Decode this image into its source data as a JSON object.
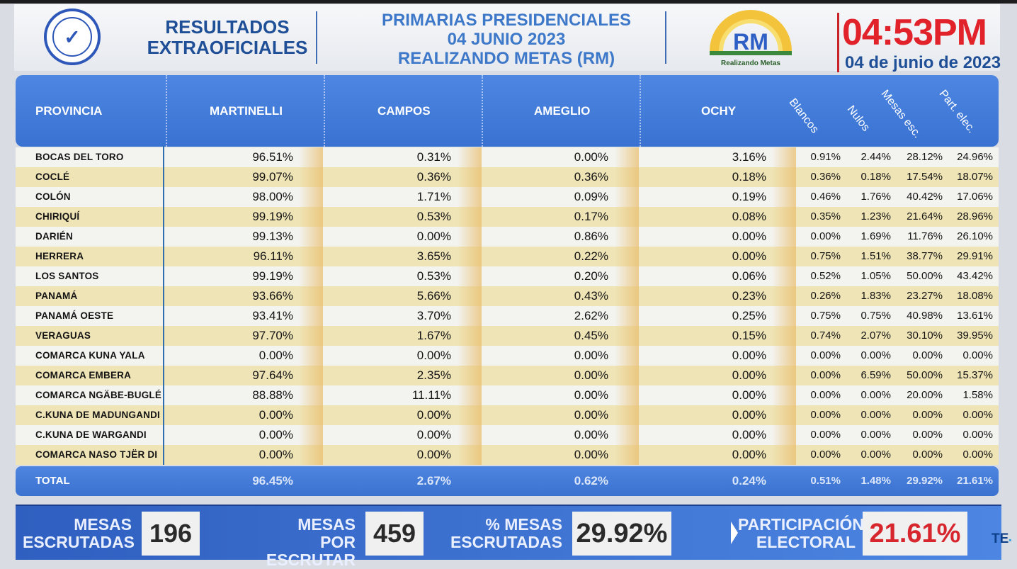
{
  "header": {
    "title_line1": "RESULTADOS",
    "title_line2": "EXTRAOFICIALES",
    "center_line1": "PRIMARIAS PRESIDENCIALES",
    "center_line2": "04 JUNIO 2023",
    "center_line3": "REALIZANDO METAS (RM)",
    "logo_text": "RM",
    "logo_caption": "Realizando Metas",
    "time": "04:53PM",
    "date": "04 de junio de 2023",
    "accent_blue": "#1f4f96",
    "accent_red": "#e2222a"
  },
  "table": {
    "columns": {
      "province": "PROVINCIA",
      "martinelli": "MARTINELLI",
      "campos": "CAMPOS",
      "ameglio": "AMEGLIO",
      "ochy": "OCHY",
      "blancos": "Blancos",
      "nulos": "Nulos",
      "mesas": "Mesas esc.",
      "part": "Part. elec."
    },
    "rows": [
      {
        "province": "BOCAS DEL TORO",
        "martinelli": "96.51%",
        "campos": "0.31%",
        "ameglio": "0.00%",
        "ochy": "3.16%",
        "blancos": "0.91%",
        "nulos": "2.44%",
        "mesas": "28.12%",
        "part": "24.96%"
      },
      {
        "province": "COCLÉ",
        "martinelli": "99.07%",
        "campos": "0.36%",
        "ameglio": "0.36%",
        "ochy": "0.18%",
        "blancos": "0.36%",
        "nulos": "0.18%",
        "mesas": "17.54%",
        "part": "18.07%"
      },
      {
        "province": "COLÓN",
        "martinelli": "98.00%",
        "campos": "1.71%",
        "ameglio": "0.09%",
        "ochy": "0.19%",
        "blancos": "0.46%",
        "nulos": "1.76%",
        "mesas": "40.42%",
        "part": "17.06%"
      },
      {
        "province": "CHIRIQUÍ",
        "martinelli": "99.19%",
        "campos": "0.53%",
        "ameglio": "0.17%",
        "ochy": "0.08%",
        "blancos": "0.35%",
        "nulos": "1.23%",
        "mesas": "21.64%",
        "part": "28.96%"
      },
      {
        "province": "DARIÉN",
        "martinelli": "99.13%",
        "campos": "0.00%",
        "ameglio": "0.86%",
        "ochy": "0.00%",
        "blancos": "0.00%",
        "nulos": "1.69%",
        "mesas": "11.76%",
        "part": "26.10%"
      },
      {
        "province": "HERRERA",
        "martinelli": "96.11%",
        "campos": "3.65%",
        "ameglio": "0.22%",
        "ochy": "0.00%",
        "blancos": "0.75%",
        "nulos": "1.51%",
        "mesas": "38.77%",
        "part": "29.91%"
      },
      {
        "province": "LOS SANTOS",
        "martinelli": "99.19%",
        "campos": "0.53%",
        "ameglio": "0.20%",
        "ochy": "0.06%",
        "blancos": "0.52%",
        "nulos": "1.05%",
        "mesas": "50.00%",
        "part": "43.42%"
      },
      {
        "province": "PANAMÁ",
        "martinelli": "93.66%",
        "campos": "5.66%",
        "ameglio": "0.43%",
        "ochy": "0.23%",
        "blancos": "0.26%",
        "nulos": "1.83%",
        "mesas": "23.27%",
        "part": "18.08%"
      },
      {
        "province": "PANAMÁ OESTE",
        "martinelli": "93.41%",
        "campos": "3.70%",
        "ameglio": "2.62%",
        "ochy": "0.25%",
        "blancos": "0.75%",
        "nulos": "0.75%",
        "mesas": "40.98%",
        "part": "13.61%"
      },
      {
        "province": "VERAGUAS",
        "martinelli": "97.70%",
        "campos": "1.67%",
        "ameglio": "0.45%",
        "ochy": "0.15%",
        "blancos": "0.74%",
        "nulos": "2.07%",
        "mesas": "30.10%",
        "part": "39.95%"
      },
      {
        "province": "COMARCA KUNA YALA",
        "martinelli": "0.00%",
        "campos": "0.00%",
        "ameglio": "0.00%",
        "ochy": "0.00%",
        "blancos": "0.00%",
        "nulos": "0.00%",
        "mesas": "0.00%",
        "part": "0.00%"
      },
      {
        "province": "COMARCA EMBERA",
        "martinelli": "97.64%",
        "campos": "2.35%",
        "ameglio": "0.00%",
        "ochy": "0.00%",
        "blancos": "0.00%",
        "nulos": "6.59%",
        "mesas": "50.00%",
        "part": "15.37%"
      },
      {
        "province": "COMARCA NGÄBE-BUGLÉ",
        "martinelli": "88.88%",
        "campos": "11.11%",
        "ameglio": "0.00%",
        "ochy": "0.00%",
        "blancos": "0.00%",
        "nulos": "0.00%",
        "mesas": "20.00%",
        "part": "1.58%"
      },
      {
        "province": "C.KUNA DE MADUNGANDI",
        "martinelli": "0.00%",
        "campos": "0.00%",
        "ameglio": "0.00%",
        "ochy": "0.00%",
        "blancos": "0.00%",
        "nulos": "0.00%",
        "mesas": "0.00%",
        "part": "0.00%"
      },
      {
        "province": "C.KUNA DE WARGANDI",
        "martinelli": "0.00%",
        "campos": "0.00%",
        "ameglio": "0.00%",
        "ochy": "0.00%",
        "blancos": "0.00%",
        "nulos": "0.00%",
        "mesas": "0.00%",
        "part": "0.00%"
      },
      {
        "province": "COMARCA NASO TJËR DI",
        "martinelli": "0.00%",
        "campos": "0.00%",
        "ameglio": "0.00%",
        "ochy": "0.00%",
        "blancos": "0.00%",
        "nulos": "0.00%",
        "mesas": "0.00%",
        "part": "0.00%"
      }
    ],
    "total": {
      "province": "TOTAL",
      "martinelli": "96.45%",
      "campos": "2.67%",
      "ameglio": "0.62%",
      "ochy": "0.24%",
      "blancos": "0.51%",
      "nulos": "1.48%",
      "mesas": "29.92%",
      "part": "21.61%"
    }
  },
  "summary": {
    "mesas_escrutadas_l1": "MESAS",
    "mesas_escrutadas_l2": "ESCRUTADAS",
    "mesas_escrutadas_value": "196",
    "por_escrutar_l1": "MESAS",
    "por_escrutar_l2": "POR ESCRUTAR",
    "por_escrutar_value": "459",
    "pct_l1": "% MESAS",
    "pct_l2": "ESCRUTADAS",
    "pct_value": "29.92%",
    "part_l1": "PARTICIPACIÓN",
    "part_l2": "ELECTORAL",
    "part_value": "21.61%",
    "channel_logo": "TE"
  }
}
